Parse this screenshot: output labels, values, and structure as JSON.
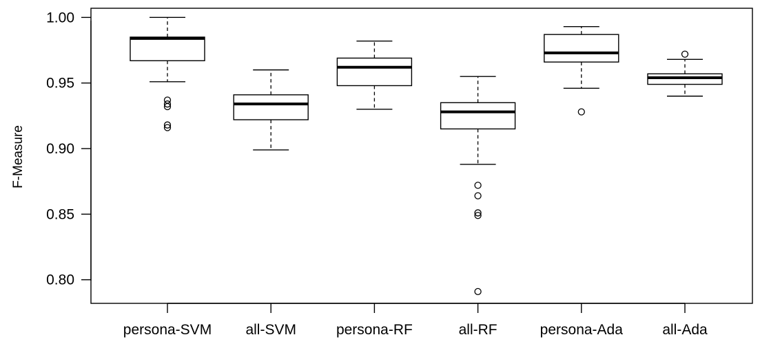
{
  "chart_data": {
    "type": "boxplot",
    "title": "",
    "xlabel": "",
    "ylabel": "F-Measure",
    "ylim": [
      0.782,
      1.007
    ],
    "yticks": [
      "0.80",
      "0.85",
      "0.90",
      "0.95",
      "1.00"
    ],
    "grid": false,
    "categories": [
      "persona-SVM",
      "all-SVM",
      "persona-RF",
      "all-RF",
      "persona-Ada",
      "all-Ada"
    ],
    "boxes": [
      {
        "category": "persona-SVM",
        "whisker_low": 0.951,
        "q1": 0.967,
        "median": 0.984,
        "q3": 0.985,
        "whisker_high": 1.0,
        "outliers": [
          0.916,
          0.918,
          0.932,
          0.934,
          0.937
        ]
      },
      {
        "category": "all-SVM",
        "whisker_low": 0.899,
        "q1": 0.922,
        "median": 0.934,
        "q3": 0.941,
        "whisker_high": 0.96,
        "outliers": []
      },
      {
        "category": "persona-RF",
        "whisker_low": 0.93,
        "q1": 0.948,
        "median": 0.962,
        "q3": 0.969,
        "whisker_high": 0.982,
        "outliers": []
      },
      {
        "category": "all-RF",
        "whisker_low": 0.888,
        "q1": 0.915,
        "median": 0.928,
        "q3": 0.935,
        "whisker_high": 0.955,
        "outliers": [
          0.791,
          0.849,
          0.851,
          0.864,
          0.872
        ]
      },
      {
        "category": "persona-Ada",
        "whisker_low": 0.946,
        "q1": 0.966,
        "median": 0.973,
        "q3": 0.987,
        "whisker_high": 0.993,
        "outliers": [
          0.928
        ]
      },
      {
        "category": "all-Ada",
        "whisker_low": 0.94,
        "q1": 0.949,
        "median": 0.954,
        "q3": 0.957,
        "whisker_high": 0.968,
        "outliers": [
          0.972
        ]
      }
    ]
  }
}
